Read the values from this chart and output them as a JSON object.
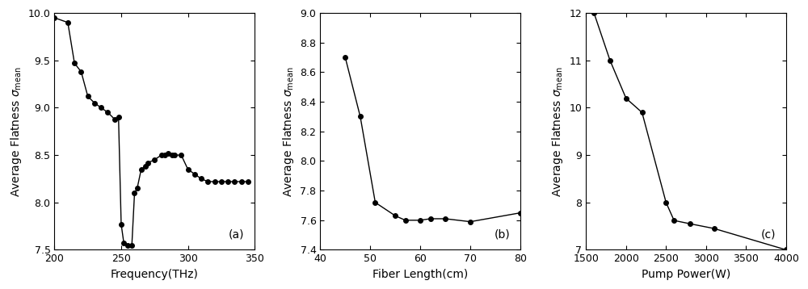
{
  "plot_a": {
    "x": [
      200,
      210,
      215,
      220,
      225,
      230,
      235,
      240,
      245,
      248,
      250,
      252,
      255,
      258,
      260,
      262,
      265,
      268,
      270,
      275,
      280,
      283,
      285,
      288,
      290,
      295,
      300,
      305,
      310,
      315,
      320,
      325,
      330,
      335,
      340,
      345
    ],
    "y": [
      9.95,
      9.9,
      9.47,
      9.38,
      9.12,
      9.05,
      9.0,
      8.95,
      8.88,
      8.9,
      7.77,
      7.57,
      7.55,
      7.55,
      8.1,
      8.15,
      8.35,
      8.38,
      8.42,
      8.45,
      8.5,
      8.5,
      8.52,
      8.5,
      8.5,
      8.5,
      8.35,
      8.3,
      8.25,
      8.22,
      8.22,
      8.22,
      8.22,
      8.22,
      8.22,
      8.22
    ],
    "xlabel": "Frequency(THz)",
    "xlim": [
      200,
      350
    ],
    "ylim": [
      7.5,
      10
    ],
    "xticks": [
      200,
      250,
      300,
      350
    ],
    "yticks": [
      7.5,
      8.0,
      8.5,
      9.0,
      9.5,
      10.0
    ],
    "label": "(a)"
  },
  "plot_b": {
    "x": [
      45,
      48,
      51,
      55,
      57,
      60,
      62,
      65,
      70,
      80
    ],
    "y": [
      8.7,
      8.3,
      7.72,
      7.63,
      7.6,
      7.6,
      7.61,
      7.61,
      7.59,
      7.65
    ],
    "xlabel": "Fiber Length(cm)",
    "xlim": [
      40,
      80
    ],
    "ylim": [
      7.4,
      9.0
    ],
    "xticks": [
      40,
      50,
      60,
      70,
      80
    ],
    "yticks": [
      7.4,
      7.6,
      7.8,
      8.0,
      8.2,
      8.4,
      8.6,
      8.8,
      9.0
    ],
    "label": "(b)"
  },
  "plot_c": {
    "x": [
      1600,
      1800,
      2000,
      2200,
      2500,
      2600,
      2800,
      3100,
      4000
    ],
    "y": [
      12.0,
      11.0,
      10.2,
      9.9,
      8.0,
      7.62,
      7.55,
      7.45,
      7.0
    ],
    "xlabel": "Pump Power(W)",
    "xlim": [
      1500,
      4000
    ],
    "ylim": [
      7,
      12
    ],
    "xticks": [
      1500,
      2000,
      2500,
      3000,
      3500,
      4000
    ],
    "yticks": [
      7,
      8,
      9,
      10,
      11,
      12
    ],
    "label": "(c)"
  },
  "line_color": "#000000",
  "marker": "o",
  "markersize": 4,
  "linewidth": 1.0,
  "bg_color": "#ffffff",
  "label_fontsize": 10,
  "tick_fontsize": 9,
  "panel_label_fontsize": 10
}
